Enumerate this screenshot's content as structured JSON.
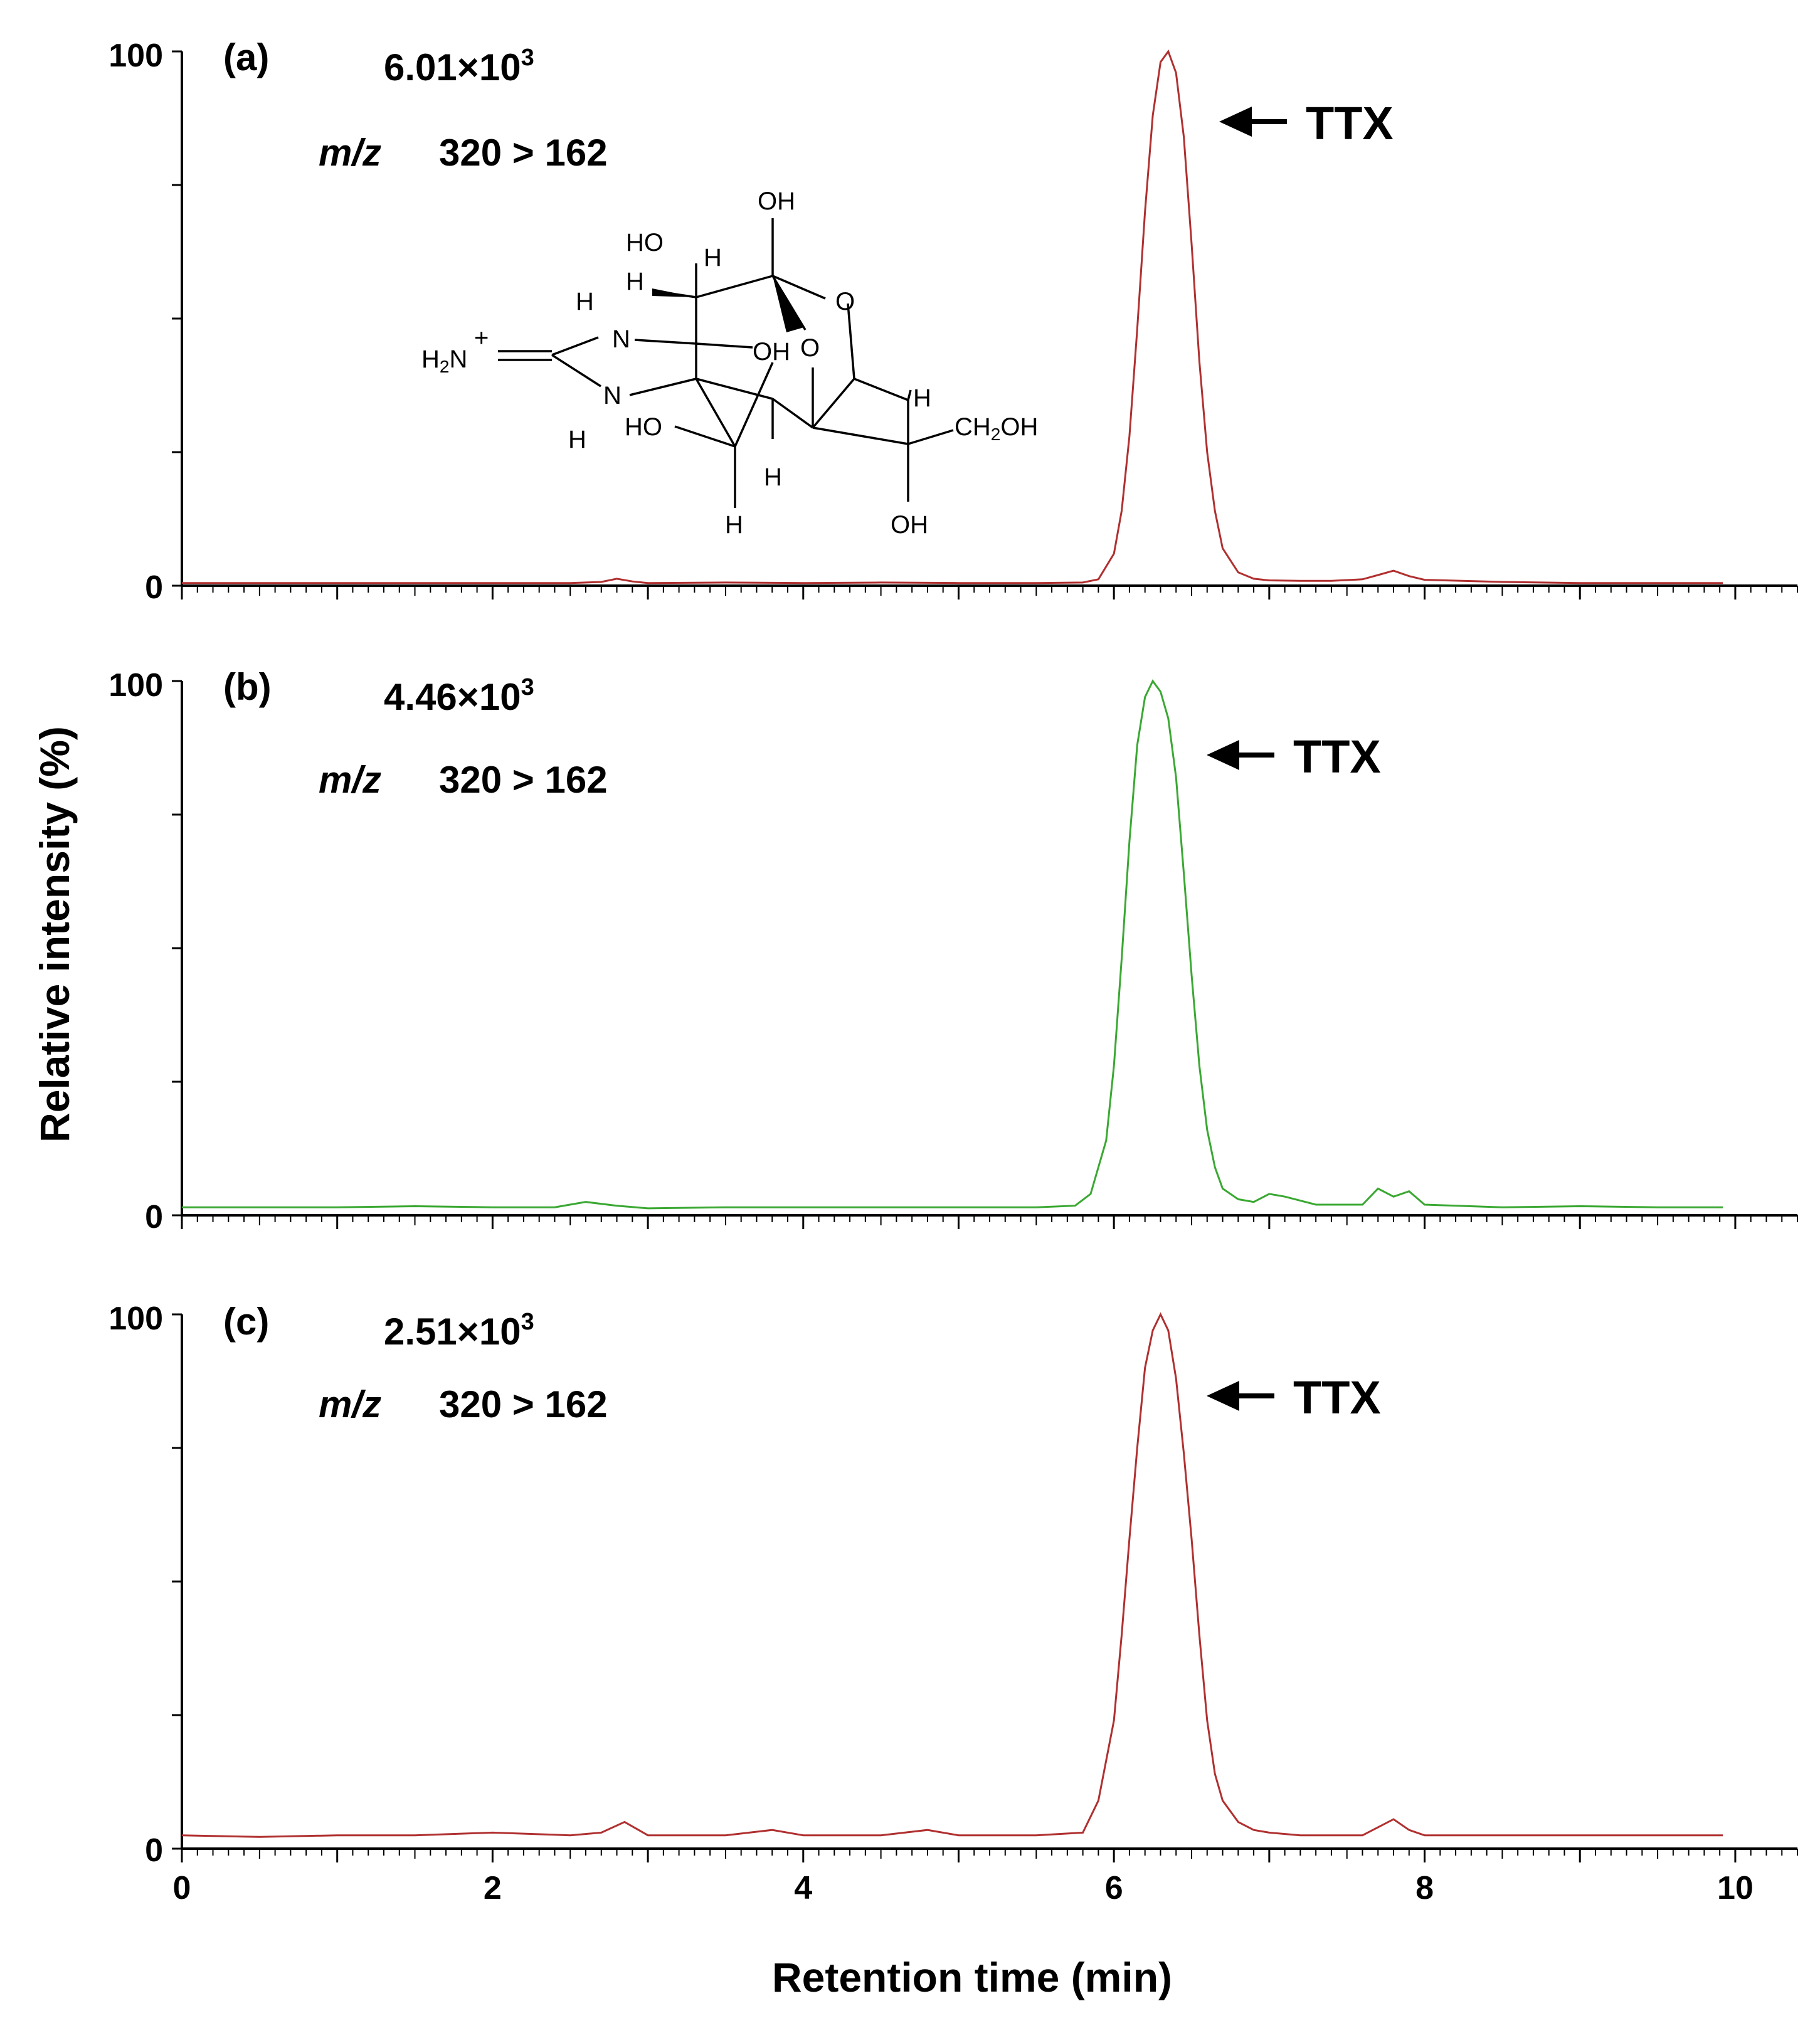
{
  "chart_data": [
    {
      "type": "line",
      "panel_label": "(a)",
      "scale_mantissa": "6.01",
      "scale_times": "×",
      "scale_base": "10",
      "scale_exp": "3",
      "mz_label": "m/z",
      "transition": "320 > 162",
      "peak_label": "TTX",
      "color": "#b03030",
      "xlim": [
        0,
        10.4
      ],
      "ylim": [
        0,
        100
      ],
      "x": [
        0.0,
        0.5,
        1.0,
        1.5,
        2.0,
        2.5,
        2.7,
        2.8,
        2.9,
        3.0,
        3.5,
        4.0,
        4.5,
        5.0,
        5.5,
        5.8,
        5.9,
        6.0,
        6.05,
        6.1,
        6.15,
        6.2,
        6.25,
        6.3,
        6.35,
        6.4,
        6.45,
        6.5,
        6.55,
        6.6,
        6.65,
        6.7,
        6.8,
        6.9,
        7.0,
        7.2,
        7.4,
        7.6,
        7.7,
        7.8,
        7.9,
        8.0,
        8.5,
        9.0,
        9.5,
        9.92
      ],
      "y": [
        0.5,
        0.5,
        0.5,
        0.5,
        0.5,
        0.5,
        0.7,
        1.3,
        0.8,
        0.5,
        0.6,
        0.5,
        0.6,
        0.5,
        0.5,
        0.6,
        1.2,
        6.0,
        14.0,
        28.0,
        48.0,
        70.0,
        88.0,
        98.0,
        100.0,
        96.0,
        84.0,
        64.0,
        42.0,
        25.0,
        14.0,
        7.0,
        2.5,
        1.3,
        1.0,
        0.9,
        0.9,
        1.2,
        2.0,
        2.8,
        1.8,
        1.1,
        0.7,
        0.5,
        0.5,
        0.5
      ],
      "yticks": [
        "100",
        "0"
      ],
      "structure": {
        "oh": "OH",
        "ho": "HO",
        "h": "H",
        "o": "O",
        "n": "N",
        "h2": "H",
        "two": "2",
        "plus": "+",
        "ch2oh_a": "CH",
        "ch2oh_b": "OH"
      }
    },
    {
      "type": "line",
      "panel_label": "(b)",
      "scale_mantissa": "4.46",
      "scale_times": "×",
      "scale_base": "10",
      "scale_exp": "3",
      "mz_label": "m/z",
      "transition": "320 > 162",
      "peak_label": "TTX",
      "color": "#3aa832",
      "xlim": [
        0,
        10.4
      ],
      "ylim": [
        0,
        100
      ],
      "x": [
        0.0,
        0.5,
        1.0,
        1.5,
        2.0,
        2.4,
        2.6,
        2.8,
        3.0,
        3.5,
        4.0,
        4.5,
        5.0,
        5.5,
        5.75,
        5.85,
        5.95,
        6.0,
        6.05,
        6.1,
        6.15,
        6.2,
        6.25,
        6.3,
        6.35,
        6.4,
        6.45,
        6.5,
        6.55,
        6.6,
        6.65,
        6.7,
        6.8,
        6.9,
        7.0,
        7.1,
        7.3,
        7.5,
        7.6,
        7.7,
        7.8,
        7.9,
        8.0,
        8.5,
        9.0,
        9.5,
        9.92
      ],
      "y": [
        1.5,
        1.5,
        1.5,
        1.7,
        1.5,
        1.5,
        2.5,
        1.8,
        1.3,
        1.5,
        1.5,
        1.5,
        1.5,
        1.5,
        1.8,
        4.0,
        14.0,
        28.0,
        48.0,
        70.0,
        88.0,
        97.0,
        100.0,
        98.0,
        93.0,
        82.0,
        64.0,
        45.0,
        28.0,
        16.0,
        9.0,
        5.0,
        3.0,
        2.5,
        4.0,
        3.5,
        2.0,
        2.0,
        2.0,
        5.0,
        3.5,
        4.5,
        2.0,
        1.5,
        1.7,
        1.5,
        1.5
      ],
      "yticks": [
        "100",
        "0"
      ]
    },
    {
      "type": "line",
      "panel_label": "(c)",
      "scale_mantissa": "2.51",
      "scale_times": "×",
      "scale_base": "10",
      "scale_exp": "3",
      "mz_label": "m/z",
      "transition": "320 > 162",
      "peak_label": "TTX",
      "color": "#b03030",
      "xlim": [
        0,
        10.4
      ],
      "ylim": [
        0,
        100
      ],
      "x": [
        0.0,
        0.5,
        1.0,
        1.5,
        2.0,
        2.5,
        2.7,
        2.85,
        3.0,
        3.5,
        3.8,
        4.0,
        4.5,
        4.8,
        5.0,
        5.5,
        5.8,
        5.9,
        6.0,
        6.05,
        6.1,
        6.15,
        6.2,
        6.25,
        6.3,
        6.35,
        6.4,
        6.45,
        6.5,
        6.55,
        6.6,
        6.65,
        6.7,
        6.8,
        6.9,
        7.0,
        7.2,
        7.4,
        7.6,
        7.7,
        7.8,
        7.9,
        8.0,
        8.5,
        9.0,
        9.5,
        9.92
      ],
      "y": [
        2.5,
        2.2,
        2.5,
        2.5,
        3.0,
        2.5,
        3.0,
        5.0,
        2.5,
        2.5,
        3.5,
        2.5,
        2.5,
        3.5,
        2.5,
        2.5,
        3.0,
        9.0,
        24.0,
        40.0,
        58.0,
        75.0,
        90.0,
        97.0,
        100.0,
        97.0,
        88.0,
        74.0,
        58.0,
        40.0,
        24.0,
        14.0,
        9.0,
        5.0,
        3.5,
        3.0,
        2.5,
        2.5,
        2.5,
        4.0,
        5.5,
        3.5,
        2.5,
        2.5,
        2.5,
        2.5,
        2.5
      ],
      "yticks": [
        "100",
        "0"
      ]
    }
  ],
  "axes": {
    "xlabel": "Retention time (min)",
    "ylabel": "Relative intensity (%)",
    "xticks": [
      "0",
      "2",
      "4",
      "6",
      "8",
      "10"
    ],
    "xtick_values": [
      0,
      2,
      4,
      6,
      8,
      10
    ],
    "xlim": [
      0,
      10.4
    ]
  }
}
